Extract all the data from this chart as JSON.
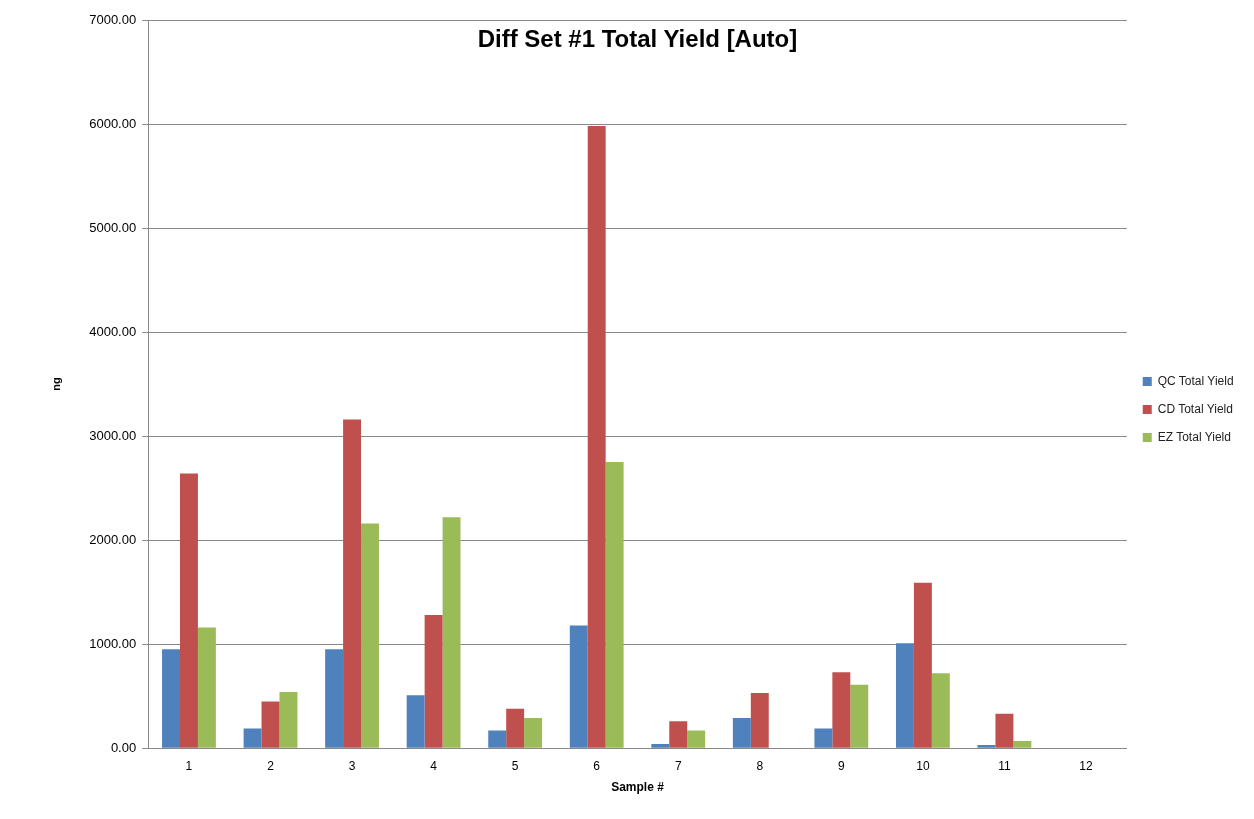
{
  "chart_data": {
    "type": "bar",
    "title": "Diff Set #1 Total Yield [Auto]",
    "xlabel": "Sample #",
    "ylabel": "ng",
    "categories": [
      "1",
      "2",
      "3",
      "4",
      "5",
      "6",
      "7",
      "8",
      "9",
      "10",
      "11",
      "12"
    ],
    "series": [
      {
        "name": "QC Total Yield",
        "color": "#4f81bd",
        "values": [
          950,
          190,
          950,
          510,
          170,
          1180,
          40,
          290,
          190,
          1010,
          30,
          null
        ]
      },
      {
        "name": "CD Total Yield",
        "color": "#c0504d",
        "values": [
          2640,
          450,
          3160,
          1280,
          380,
          5980,
          260,
          530,
          730,
          1590,
          330,
          null
        ]
      },
      {
        "name": "EZ Total Yield",
        "color": "#9bbb59",
        "values": [
          1160,
          540,
          2160,
          2220,
          290,
          2750,
          170,
          null,
          610,
          720,
          70,
          null
        ]
      }
    ],
    "ylim": [
      0,
      7000
    ],
    "yticks": [
      {
        "value": 0,
        "label": "0.00"
      },
      {
        "value": 1000,
        "label": "1000.00"
      },
      {
        "value": 2000,
        "label": "2000.00"
      },
      {
        "value": 3000,
        "label": "3000.00"
      },
      {
        "value": 4000,
        "label": "4000.00"
      },
      {
        "value": 5000,
        "label": "5000.00"
      },
      {
        "value": 6000,
        "label": "6000.00"
      },
      {
        "value": 7000,
        "label": "7000.00"
      }
    ],
    "grid": "y",
    "legend": "right"
  }
}
